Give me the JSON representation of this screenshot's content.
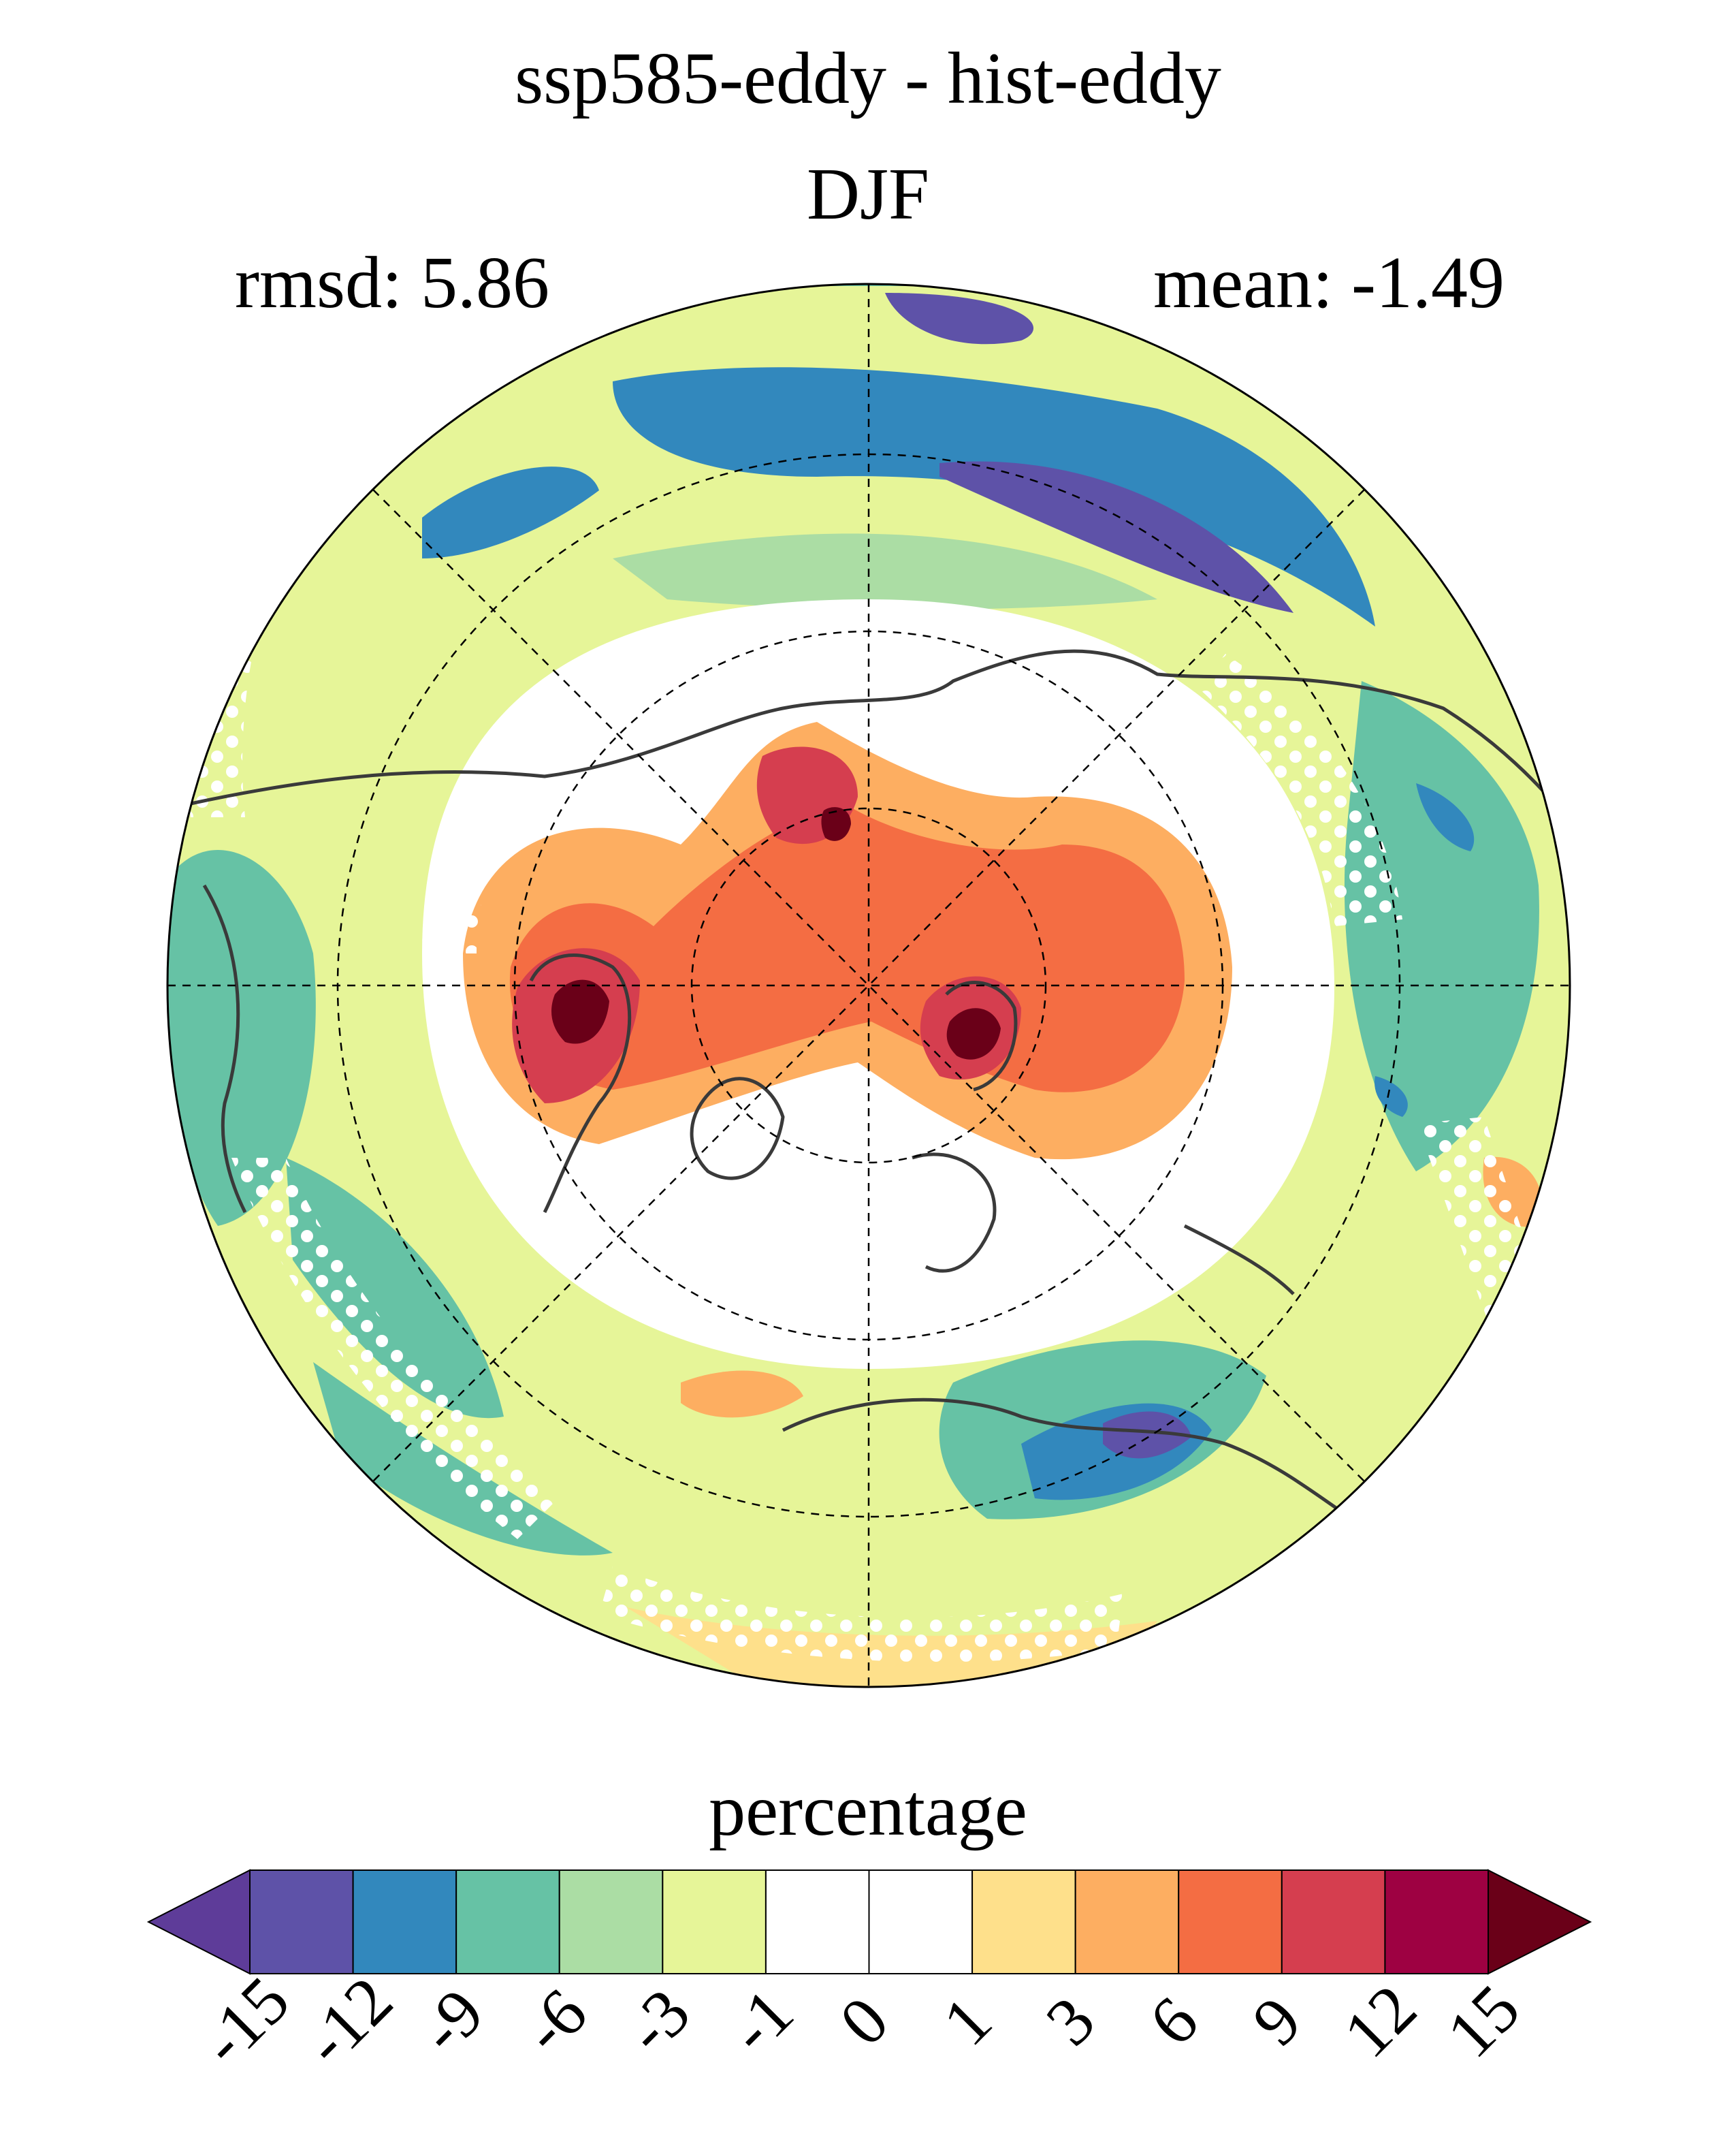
{
  "header": {
    "title": "ssp585-eddy - hist-eddy",
    "season": "DJF",
    "rmsd_label": "rmsd: 5.86",
    "mean_label": "mean: -1.49"
  },
  "map": {
    "projection": "north-polar-stereographic",
    "hatching": "white dots (stippling)",
    "colors": {
      "coast": "#3a3a3a",
      "grid": "#000000"
    }
  },
  "colorbar": {
    "title": "percentage",
    "ticks": [
      "-15",
      "-12",
      "-9",
      "-6",
      "-3",
      "-1",
      "0",
      "1",
      "3",
      "6",
      "9",
      "12",
      "15"
    ],
    "colors": [
      "#5e3c99",
      "#5e52a8",
      "#3288bd",
      "#66c2a5",
      "#abdda4",
      "#e6f598",
      "#ffffff",
      "#ffffff",
      "#fee08b",
      "#fdae61",
      "#f46d43",
      "#d53e4f",
      "#9e0142",
      "#6a0018"
    ]
  }
}
